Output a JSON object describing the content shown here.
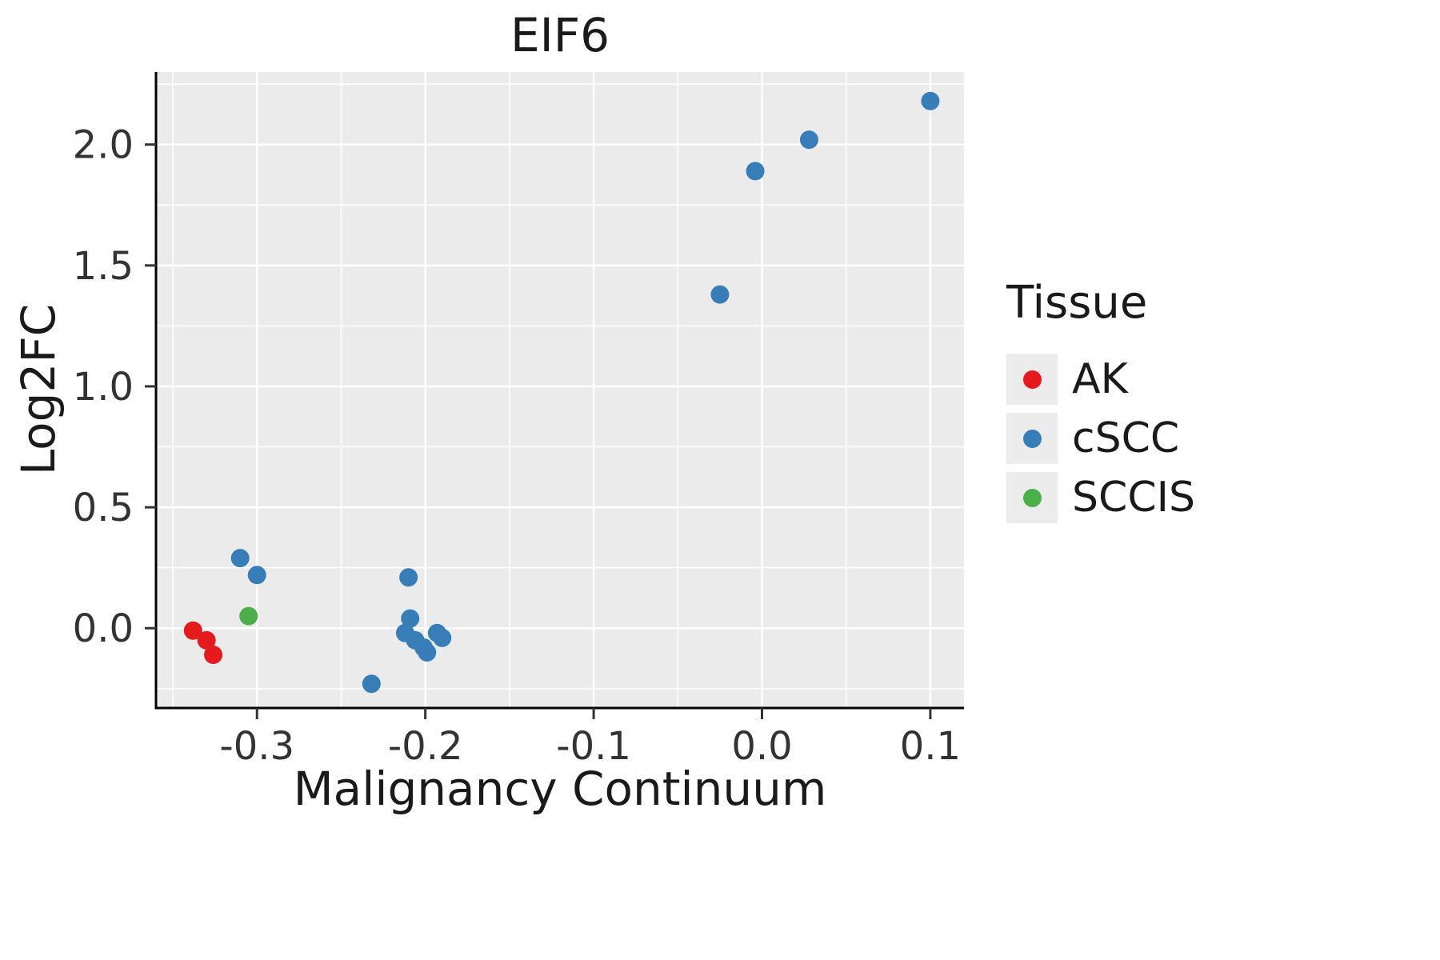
{
  "chart_data": {
    "type": "scatter",
    "title": "EIF6",
    "xlabel": "Malignancy Continuum",
    "ylabel": "Log2FC",
    "legend_title": "Tissue",
    "legend_position": "right",
    "grid": true,
    "panel_background": "#EBEBEB",
    "grid_color": "#FFFFFF",
    "axis_color": "#000000",
    "tick_text_color": "#333333",
    "xlim": [
      -0.36,
      0.12
    ],
    "ylim": [
      -0.33,
      2.3
    ],
    "x_ticks": [
      -0.3,
      -0.2,
      -0.1,
      0.0,
      0.1
    ],
    "x_tick_labels": [
      "-0.3",
      "-0.2",
      "-0.1",
      "0.0",
      "0.1"
    ],
    "y_ticks": [
      0.0,
      0.5,
      1.0,
      1.5,
      2.0
    ],
    "y_tick_labels": [
      "0.0",
      "0.5",
      "1.0",
      "1.5",
      "2.0"
    ],
    "series": [
      {
        "name": "AK",
        "color": "#E41A1C",
        "points": [
          [
            -0.338,
            -0.01
          ],
          [
            -0.33,
            -0.05
          ],
          [
            -0.326,
            -0.11
          ]
        ]
      },
      {
        "name": "cSCC",
        "color": "#377EB8",
        "points": [
          [
            -0.31,
            0.29
          ],
          [
            -0.3,
            0.22
          ],
          [
            -0.232,
            -0.23
          ],
          [
            -0.21,
            0.21
          ],
          [
            -0.209,
            0.04
          ],
          [
            -0.212,
            -0.02
          ],
          [
            -0.206,
            -0.05
          ],
          [
            -0.201,
            -0.08
          ],
          [
            -0.199,
            -0.1
          ],
          [
            -0.193,
            -0.02
          ],
          [
            -0.19,
            -0.04
          ],
          [
            -0.025,
            1.38
          ],
          [
            -0.004,
            1.89
          ],
          [
            0.028,
            2.02
          ],
          [
            0.1,
            2.18
          ]
        ]
      },
      {
        "name": "SCCIS",
        "color": "#4DAF4A",
        "points": [
          [
            -0.305,
            0.05
          ]
        ]
      }
    ]
  }
}
